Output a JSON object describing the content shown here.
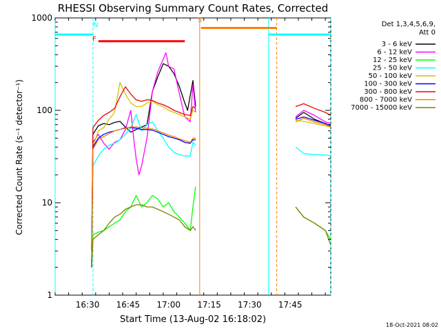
{
  "chart_data": {
    "type": "line",
    "title": "RHESSI Observing Summary Count Rates, Corrected",
    "xlabel": "Start Time (13-Aug-02 16:18:02)",
    "ylabel": "Corrected Count Rate (s⁻¹ detector⁻¹)",
    "y_scale": "log",
    "ylim": [
      1,
      1000
    ],
    "xlim_minutes_after_1618": [
      0,
      102
    ],
    "x_ticks": [
      {
        "label": "16:30",
        "minute": 12
      },
      {
        "label": "16:45",
        "minute": 27
      },
      {
        "label": "17:00",
        "minute": 42
      },
      {
        "label": "17:15",
        "minute": 57
      },
      {
        "label": "17:30",
        "minute": 72
      },
      {
        "label": "17:45",
        "minute": 87
      }
    ],
    "y_ticks": [
      {
        "label": "1",
        "value": 1
      },
      {
        "label": "10",
        "value": 10
      },
      {
        "label": "100",
        "value": 100
      },
      {
        "label": "1000",
        "value": 1000
      }
    ],
    "legend_header": [
      "Det 1,3,4,5,6,9,",
      "Att 0"
    ],
    "legend_position": "top-right",
    "timestamp": "18-Oct-2021 08:02",
    "series": [
      {
        "name": "3 - 6 keV",
        "color": "#000000",
        "points": [
          [
            13.5,
            3
          ],
          [
            14,
            55
          ],
          [
            16,
            68
          ],
          [
            18,
            72
          ],
          [
            20,
            70
          ],
          [
            22,
            74
          ],
          [
            24,
            76
          ],
          [
            26,
            66
          ],
          [
            28,
            58
          ],
          [
            30,
            62
          ],
          [
            32,
            66
          ],
          [
            34,
            70
          ],
          [
            36,
            160
          ],
          [
            38,
            230
          ],
          [
            40,
            320
          ],
          [
            42,
            300
          ],
          [
            44,
            250
          ],
          [
            46,
            180
          ],
          [
            48,
            120
          ],
          [
            49,
            100
          ],
          [
            51,
            210
          ],
          [
            52,
            110
          ],
          [
            89,
            82
          ],
          [
            92,
            95
          ],
          [
            96,
            80
          ],
          [
            100,
            72
          ],
          [
            102,
            68
          ]
        ]
      },
      {
        "name": "6 - 12 keV",
        "color": "#ff00ff",
        "points": [
          [
            13.5,
            3
          ],
          [
            14,
            45
          ],
          [
            16,
            55
          ],
          [
            18,
            44
          ],
          [
            20,
            38
          ],
          [
            22,
            45
          ],
          [
            24,
            48
          ],
          [
            26,
            62
          ],
          [
            28,
            100
          ],
          [
            29,
            52
          ],
          [
            30,
            30
          ],
          [
            31,
            20
          ],
          [
            32,
            25
          ],
          [
            34,
            50
          ],
          [
            36,
            160
          ],
          [
            38,
            260
          ],
          [
            40,
            360
          ],
          [
            41,
            420
          ],
          [
            42,
            300
          ],
          [
            44,
            280
          ],
          [
            46,
            150
          ],
          [
            48,
            85
          ],
          [
            50,
            75
          ],
          [
            51,
            190
          ],
          [
            52,
            95
          ],
          [
            89,
            85
          ],
          [
            92,
            100
          ],
          [
            96,
            88
          ],
          [
            100,
            75
          ],
          [
            102,
            72
          ]
        ]
      },
      {
        "name": "12 - 25 keV",
        "color": "#00ff00",
        "points": [
          [
            13.5,
            2
          ],
          [
            14,
            4.5
          ],
          [
            16,
            4.8
          ],
          [
            18,
            5
          ],
          [
            20,
            5.5
          ],
          [
            22,
            6
          ],
          [
            24,
            6.5
          ],
          [
            26,
            8
          ],
          [
            28,
            9
          ],
          [
            30,
            12
          ],
          [
            32,
            9
          ],
          [
            34,
            10
          ],
          [
            36,
            12
          ],
          [
            38,
            11
          ],
          [
            40,
            9
          ],
          [
            42,
            10
          ],
          [
            44,
            8
          ],
          [
            46,
            7
          ],
          [
            48,
            6
          ],
          [
            50,
            5
          ],
          [
            51,
            9
          ],
          [
            52,
            15
          ],
          [
            89,
            9
          ],
          [
            92,
            7
          ],
          [
            96,
            6
          ],
          [
            100,
            5
          ],
          [
            102,
            4
          ]
        ]
      },
      {
        "name": "25 - 50 keV",
        "color": "#00ffff",
        "points": [
          [
            13.5,
            2
          ],
          [
            14,
            25
          ],
          [
            16,
            32
          ],
          [
            18,
            38
          ],
          [
            20,
            42
          ],
          [
            22,
            44
          ],
          [
            24,
            48
          ],
          [
            26,
            55
          ],
          [
            28,
            65
          ],
          [
            30,
            90
          ],
          [
            32,
            60
          ],
          [
            34,
            70
          ],
          [
            36,
            75
          ],
          [
            38,
            60
          ],
          [
            40,
            50
          ],
          [
            42,
            40
          ],
          [
            44,
            35
          ],
          [
            46,
            33
          ],
          [
            48,
            32
          ],
          [
            50,
            32
          ],
          [
            51,
            45
          ],
          [
            52,
            42
          ],
          [
            89,
            40
          ],
          [
            92,
            34
          ],
          [
            96,
            33
          ],
          [
            100,
            33
          ],
          [
            102,
            32
          ]
        ]
      },
      {
        "name": "50 - 100 keV",
        "color": "#d4c000",
        "points": [
          [
            13.5,
            2
          ],
          [
            14,
            40
          ],
          [
            16,
            60
          ],
          [
            18,
            65
          ],
          [
            20,
            80
          ],
          [
            22,
            95
          ],
          [
            24,
            200
          ],
          [
            26,
            150
          ],
          [
            28,
            120
          ],
          [
            30,
            110
          ],
          [
            32,
            110
          ],
          [
            34,
            120
          ],
          [
            36,
            125
          ],
          [
            38,
            115
          ],
          [
            40,
            110
          ],
          [
            42,
            100
          ],
          [
            44,
            95
          ],
          [
            46,
            90
          ],
          [
            48,
            85
          ],
          [
            50,
            80
          ],
          [
            51,
            100
          ],
          [
            52,
            95
          ],
          [
            89,
            78
          ],
          [
            92,
            76
          ],
          [
            96,
            72
          ],
          [
            100,
            68
          ],
          [
            102,
            66
          ]
        ]
      },
      {
        "name": "100 - 300 keV",
        "color": "#0000ff",
        "points": [
          [
            13.5,
            2
          ],
          [
            14,
            40
          ],
          [
            16,
            50
          ],
          [
            18,
            55
          ],
          [
            20,
            58
          ],
          [
            22,
            60
          ],
          [
            24,
            62
          ],
          [
            26,
            65
          ],
          [
            28,
            65
          ],
          [
            30,
            64
          ],
          [
            32,
            62
          ],
          [
            34,
            62
          ],
          [
            36,
            61
          ],
          [
            38,
            58
          ],
          [
            40,
            55
          ],
          [
            42,
            52
          ],
          [
            44,
            50
          ],
          [
            46,
            48
          ],
          [
            48,
            45
          ],
          [
            50,
            44
          ],
          [
            51,
            48
          ],
          [
            52,
            48
          ],
          [
            89,
            80
          ],
          [
            92,
            85
          ],
          [
            96,
            78
          ],
          [
            100,
            72
          ],
          [
            102,
            68
          ]
        ]
      },
      {
        "name": "300 - 800 keV",
        "color": "#ee0000",
        "points": [
          [
            13.5,
            2
          ],
          [
            14,
            65
          ],
          [
            16,
            78
          ],
          [
            18,
            88
          ],
          [
            20,
            95
          ],
          [
            22,
            105
          ],
          [
            24,
            140
          ],
          [
            26,
            180
          ],
          [
            28,
            150
          ],
          [
            30,
            130
          ],
          [
            32,
            125
          ],
          [
            34,
            130
          ],
          [
            36,
            128
          ],
          [
            38,
            120
          ],
          [
            40,
            115
          ],
          [
            42,
            108
          ],
          [
            44,
            100
          ],
          [
            46,
            95
          ],
          [
            48,
            90
          ],
          [
            50,
            88
          ],
          [
            51,
            110
          ],
          [
            52,
            105
          ],
          [
            89,
            110
          ],
          [
            92,
            118
          ],
          [
            96,
            105
          ],
          [
            100,
            95
          ],
          [
            102,
            88
          ]
        ]
      },
      {
        "name": "800 - 7000 keV",
        "color": "#ff7f00",
        "points": [
          [
            13.5,
            2
          ],
          [
            14,
            38
          ],
          [
            16,
            48
          ],
          [
            18,
            52
          ],
          [
            20,
            56
          ],
          [
            22,
            60
          ],
          [
            24,
            62
          ],
          [
            26,
            64
          ],
          [
            28,
            66
          ],
          [
            30,
            66
          ],
          [
            32,
            65
          ],
          [
            34,
            64
          ],
          [
            36,
            63
          ],
          [
            38,
            60
          ],
          [
            40,
            57
          ],
          [
            42,
            54
          ],
          [
            44,
            52
          ],
          [
            46,
            49
          ],
          [
            48,
            47
          ],
          [
            50,
            45
          ],
          [
            51,
            50
          ],
          [
            52,
            50
          ],
          [
            89,
            75
          ],
          [
            92,
            82
          ],
          [
            96,
            75
          ],
          [
            100,
            70
          ],
          [
            102,
            66
          ]
        ]
      },
      {
        "name": "7000 - 15000 keV",
        "color": "#7f7f00",
        "points": [
          [
            13.5,
            2
          ],
          [
            14,
            4
          ],
          [
            16,
            4.5
          ],
          [
            18,
            5
          ],
          [
            20,
            6
          ],
          [
            22,
            7
          ],
          [
            24,
            7.5
          ],
          [
            26,
            8.5
          ],
          [
            28,
            9
          ],
          [
            30,
            9.5
          ],
          [
            32,
            9.5
          ],
          [
            34,
            9
          ],
          [
            36,
            9
          ],
          [
            38,
            8.5
          ],
          [
            40,
            8
          ],
          [
            42,
            7.5
          ],
          [
            44,
            7
          ],
          [
            46,
            6.5
          ],
          [
            48,
            5.5
          ],
          [
            50,
            5
          ],
          [
            51,
            5.5
          ],
          [
            52,
            5
          ],
          [
            89,
            9
          ],
          [
            92,
            7
          ],
          [
            96,
            6
          ],
          [
            100,
            5
          ],
          [
            102,
            3.5
          ]
        ]
      }
    ],
    "annotations": [
      {
        "text": "N",
        "minute": 15,
        "value": 800,
        "color": "#00ffff"
      },
      {
        "text": "F",
        "minute": 14.5,
        "value": 560,
        "color": "#ff0000"
      },
      {
        "text": "S",
        "minute": 53.5,
        "value": 900,
        "color": "#ff7f00"
      }
    ],
    "bars": [
      {
        "from": 0,
        "to": 14,
        "value": 660,
        "color": "#00ffff",
        "role": "night"
      },
      {
        "from": 79,
        "to": 102,
        "value": 660,
        "color": "#00ffff",
        "role": "night"
      },
      {
        "from": 16,
        "to": 48,
        "value": 560,
        "color": "#ff0000",
        "role": "flare"
      },
      {
        "from": 54,
        "to": 82,
        "value": 780,
        "color": "#ff7f00",
        "role": "saa"
      }
    ],
    "vlines": [
      {
        "minute": 0,
        "color": "#00ffff",
        "style": "solid"
      },
      {
        "minute": 14,
        "color": "#00ffff",
        "style": "dashed"
      },
      {
        "minute": 79,
        "color": "#00ffff",
        "style": "solid"
      },
      {
        "minute": 102,
        "color": "#00ffff",
        "style": "dashed"
      },
      {
        "minute": 53.5,
        "color": "#ff7f00",
        "style": "solid"
      },
      {
        "minute": 82,
        "color": "#ff7f00",
        "style": "dashed"
      }
    ]
  }
}
